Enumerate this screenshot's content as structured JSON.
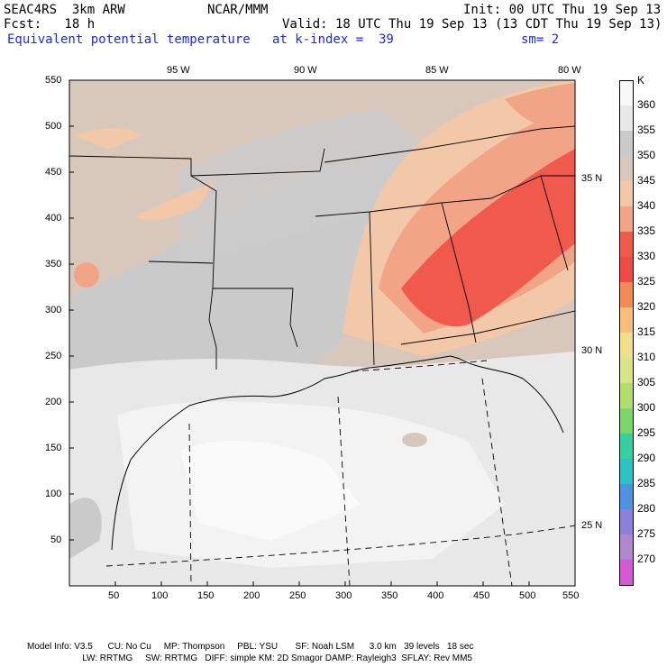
{
  "header": {
    "left1": "SEAC4RS  3km ARW",
    "center1": "NCAR/MMM",
    "right1": "Init: 00 UTC Thu 19 Sep 13",
    "left2": "Fcst:   18 h",
    "right2": "Valid: 18 UTC Thu 19 Sep 13 (13 CDT Thu 19 Sep 13)",
    "field": "Equivalent potential temperature",
    "kindex": "at k-index =  39",
    "smooth": "sm= 2"
  },
  "axes": {
    "x_ticks": [
      "50",
      "100",
      "150",
      "200",
      "250",
      "300",
      "350",
      "400",
      "450",
      "500",
      "550"
    ],
    "y_ticks": [
      "550",
      "500",
      "450",
      "400",
      "350",
      "300",
      "250",
      "200",
      "150",
      "100",
      "50"
    ],
    "lon_labels": [
      "95 W",
      "90 W",
      "85 W",
      "80 W"
    ],
    "lat_labels": [
      "35 N",
      "30 N",
      "25 N"
    ]
  },
  "legend": {
    "unit": "K",
    "levels": [
      "360",
      "355",
      "350",
      "345",
      "340",
      "335",
      "330",
      "325",
      "320",
      "315",
      "310",
      "305",
      "300",
      "295",
      "290",
      "285",
      "280",
      "275",
      "270"
    ],
    "colors": [
      "#f8f8f8",
      "#e8e8e8",
      "#cacaca",
      "#d8c8bc",
      "#f3c8a8",
      "#f2a487",
      "#ef5a4c",
      "#f24848",
      "#f58a58",
      "#f6c078",
      "#f1e08a",
      "#d8e58a",
      "#b2df6a",
      "#7fd470",
      "#36d0a0",
      "#2ec2c4",
      "#4f92e2",
      "#8d80d8",
      "#b288cc",
      "#d45ad2"
    ]
  },
  "footer": {
    "line1": "Model Info: V3.5      CU: No Cu     MP: Thompson     PBL: YSU       SF: Noah LSM      3.0 km   39 levels   18 sec",
    "line2": "                      LW: RRTMG     SW: RRTMG   DIFF: simple KM: 2D Smagor DAMP: Rayleigh3  SFLAY: Rev MM5"
  }
}
